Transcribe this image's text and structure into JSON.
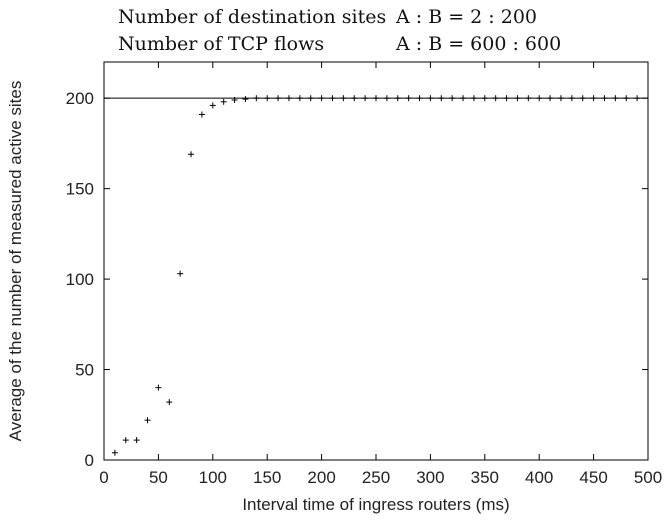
{
  "header": {
    "rows": [
      {
        "label": "Number of destination sites",
        "value": "A : B = 2 : 200"
      },
      {
        "label": "Number of TCP flows",
        "value": "A : B = 600 : 600"
      }
    ]
  },
  "chart_data": {
    "type": "scatter",
    "xlabel": "Interval time of ingress routers (ms)",
    "ylabel": "Average of the number of measured active sites",
    "xlim": [
      0,
      500
    ],
    "ylim": [
      0,
      220
    ],
    "xticks": [
      0,
      50,
      100,
      150,
      200,
      250,
      300,
      350,
      400,
      450,
      500
    ],
    "yticks": [
      0,
      50,
      100,
      150,
      200
    ],
    "reference_line": {
      "y": 200
    },
    "marker": "+",
    "grid": false,
    "series": [
      {
        "x": [
          10,
          20,
          30,
          40,
          50,
          60,
          70,
          80,
          90,
          100,
          110,
          120,
          130,
          140,
          150,
          160,
          170,
          180,
          190,
          200,
          210,
          220,
          230,
          240,
          250,
          260,
          270,
          280,
          290,
          300,
          310,
          320,
          330,
          340,
          350,
          360,
          370,
          380,
          390,
          400,
          410,
          420,
          430,
          440,
          450,
          460,
          470,
          480,
          490
        ],
        "y": [
          4,
          11,
          11,
          22,
          40,
          32,
          103,
          169,
          191,
          196,
          198,
          199,
          199.5,
          200,
          200,
          200,
          200,
          200,
          200,
          200,
          200,
          200,
          200,
          200,
          200,
          200,
          200,
          200,
          200,
          200,
          200,
          200,
          200,
          200,
          200,
          200,
          200,
          200,
          200,
          200,
          200,
          200,
          200,
          200,
          200,
          200,
          200,
          200,
          200
        ]
      }
    ]
  }
}
